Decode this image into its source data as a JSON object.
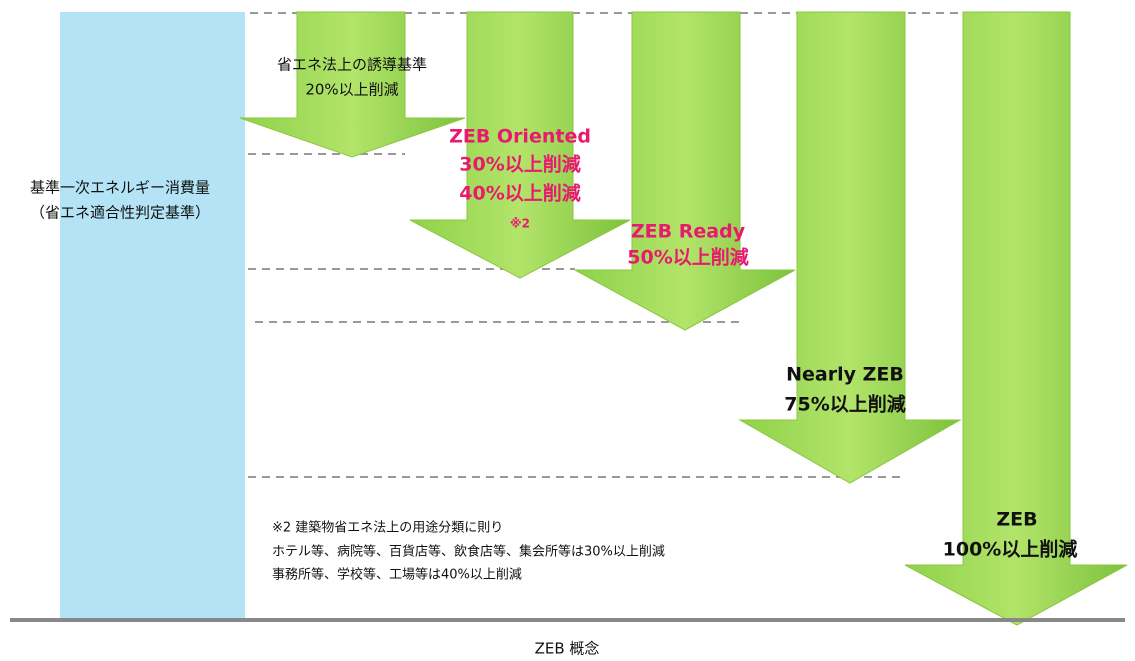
{
  "baseline": {
    "lines": [
      "基準一次エネルギー消費量",
      "（省エネ適合性判定基準）"
    ]
  },
  "arrows": [
    {
      "lines": [
        "省エネ法上の誘導基準",
        "20%以上削減"
      ]
    },
    {
      "lines": [
        "ZEB Oriented",
        "30%以上削減",
        "40%以上削減",
        "※2"
      ]
    },
    {
      "lines": [
        "ZEB Ready",
        "50%以上削減"
      ]
    },
    {
      "lines": [
        "Nearly ZEB",
        "75%以上削減"
      ]
    },
    {
      "lines": [
        "ZEB",
        "100%以上削減"
      ]
    }
  ],
  "note": {
    "lines": [
      "※2  建築物省エネ法上の用途分類に則り",
      "ホテル等、病院等、百貨店等、飲食店等、集会所等は30%以上削減",
      "事務所等、学校等、工場等は40%以上削減"
    ]
  },
  "caption": "ZEB 概念"
}
